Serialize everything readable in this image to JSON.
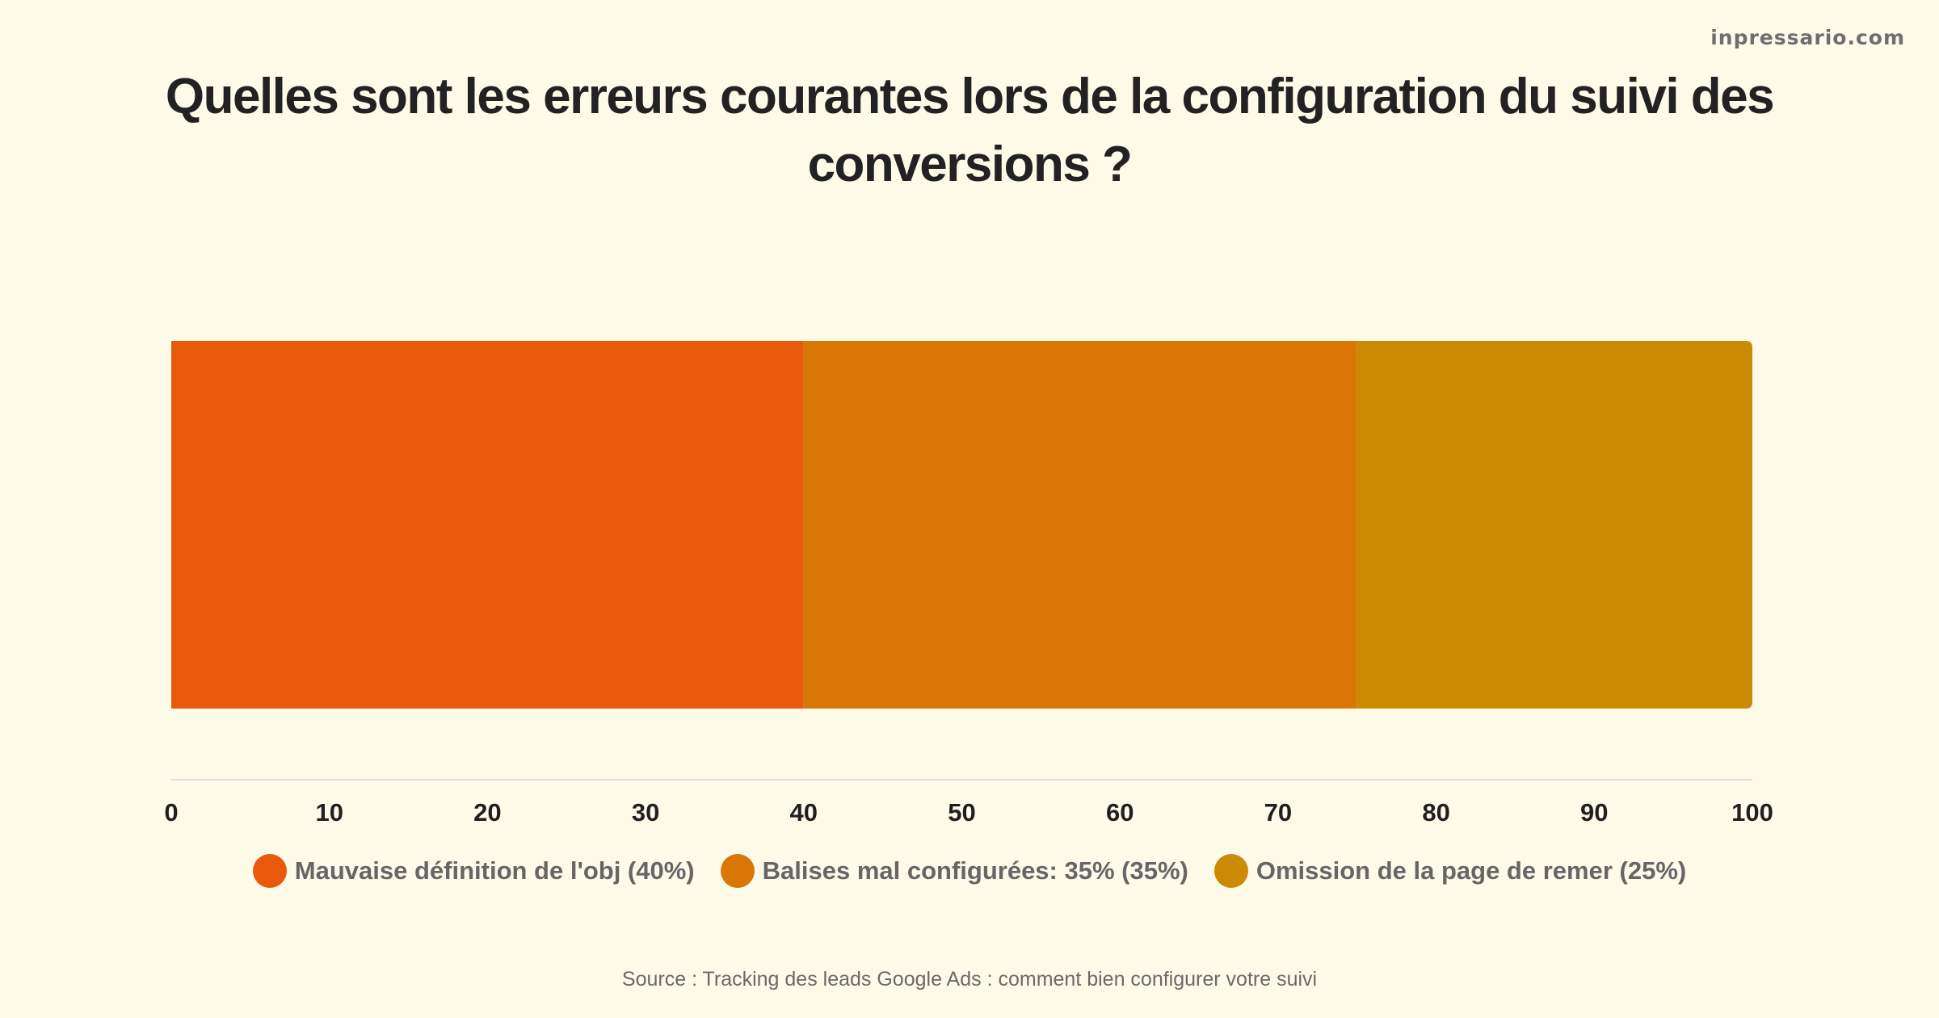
{
  "brand": "inpressario.com",
  "source": "Source : Tracking des leads Google Ads : comment bien configurer votre suivi",
  "chart_data": {
    "type": "bar",
    "orientation": "horizontal",
    "stacked": true,
    "title": "Quelles sont les erreurs courantes lors de la configuration du suivi des conversions ?",
    "xlim": [
      0,
      100
    ],
    "x_ticks": [
      0,
      10,
      20,
      30,
      40,
      50,
      60,
      70,
      80,
      90,
      100
    ],
    "grid": false,
    "legend_position": "bottom",
    "series": [
      {
        "name": "Mauvaise définition de l'obj (40%)",
        "values": [
          40
        ],
        "color": "#e8590c"
      },
      {
        "name": "Balises mal configurées: 35% (35%)",
        "values": [
          35
        ],
        "color": "#d97706"
      },
      {
        "name": "Omission de la page de remer (25%)",
        "values": [
          25
        ],
        "color": "#ca8a04"
      }
    ]
  }
}
